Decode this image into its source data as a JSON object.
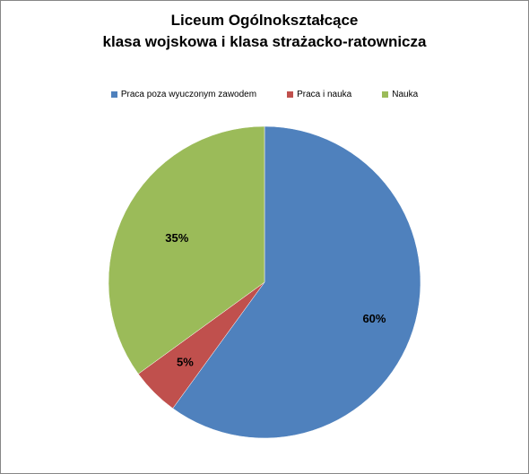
{
  "chart_data": {
    "type": "pie",
    "title": [
      "Liceum Ogólnokształcące",
      "klasa wojskowa i klasa strażacko-ratownicza"
    ],
    "legend_position": "top",
    "slices": [
      {
        "name": "Praca poza wyuczonym zawodem",
        "value": 60,
        "label": "60%",
        "color": "#4f81bd"
      },
      {
        "name": "Praca i nauka",
        "value": 5,
        "label": "5%",
        "color": "#c0504d"
      },
      {
        "name": "Nauka",
        "value": 35,
        "label": "35%",
        "color": "#9bbb59"
      }
    ]
  }
}
